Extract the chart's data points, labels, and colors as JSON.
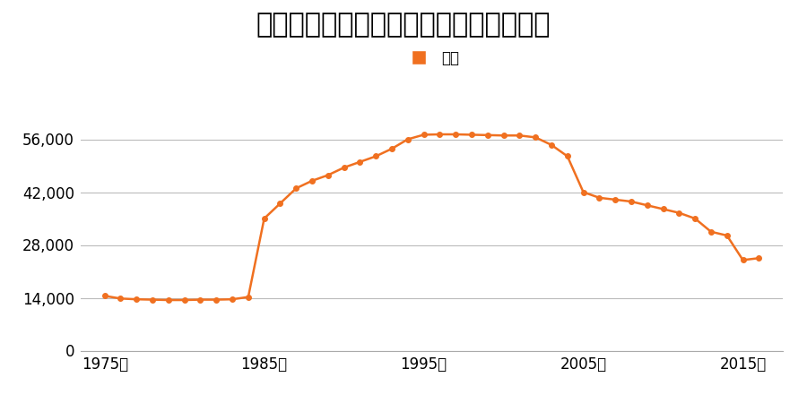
{
  "title": "富山県高岡市波岡１３０番６の地価推移",
  "legend_label": "価格",
  "line_color": "#F07020",
  "background_color": "#ffffff",
  "grid_color": "#bbbbbb",
  "xlabel_years": [
    1975,
    1985,
    1995,
    2005,
    2015
  ],
  "yticks": [
    0,
    14000,
    28000,
    42000,
    56000
  ],
  "ylim": [
    0,
    63000
  ],
  "xlim": [
    1973.5,
    2017.5
  ],
  "years": [
    1975,
    1976,
    1977,
    1978,
    1979,
    1980,
    1981,
    1982,
    1983,
    1984,
    1985,
    1986,
    1987,
    1988,
    1989,
    1990,
    1991,
    1992,
    1993,
    1994,
    1995,
    1996,
    1997,
    1998,
    1999,
    2000,
    2001,
    2002,
    2003,
    2004,
    2005,
    2006,
    2007,
    2008,
    2009,
    2010,
    2011,
    2012,
    2013,
    2014,
    2015,
    2016
  ],
  "values": [
    14500,
    13800,
    13600,
    13500,
    13400,
    13400,
    13500,
    13500,
    13600,
    14200,
    35000,
    39000,
    43000,
    45000,
    46500,
    48500,
    50000,
    51500,
    53500,
    56000,
    57200,
    57300,
    57300,
    57200,
    57100,
    57000,
    57000,
    56500,
    54500,
    51500,
    42000,
    40500,
    40000,
    39500,
    38500,
    37500,
    36500,
    35000,
    31500,
    30500,
    24000,
    24500
  ]
}
